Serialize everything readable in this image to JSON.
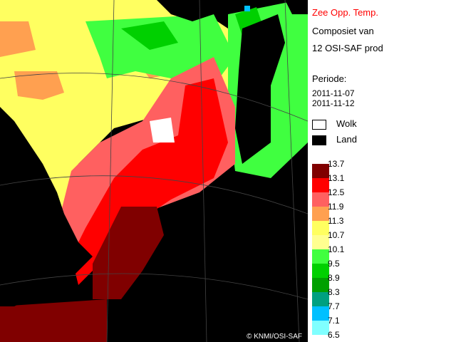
{
  "legend": {
    "title": "Zee Opp. Temp.",
    "line2": "Composiet van",
    "line3": "12 OSI-SAF prod",
    "period_label": "Periode:",
    "period_start": "2011-11-07",
    "period_end": "2011-11-12",
    "cloud_label": "Wolk",
    "land_label": "Land"
  },
  "map": {
    "copyright": "© KNMI/OSI-SAF"
  },
  "color_scale": {
    "ticks": [
      "13.7",
      "13.1",
      "12.5",
      "11.9",
      "11.3",
      "10.7",
      "10.1",
      "9.5",
      "8.9",
      "8.3",
      "7.7",
      "7.1",
      "6.5"
    ],
    "colors": [
      "#800000",
      "#ff0000",
      "#ff6060",
      "#ffa050",
      "#ffff60",
      "#ffff90",
      "#40ff40",
      "#00d000",
      "#00a000",
      "#00a080",
      "#00c0ff",
      "#80ffff"
    ]
  }
}
